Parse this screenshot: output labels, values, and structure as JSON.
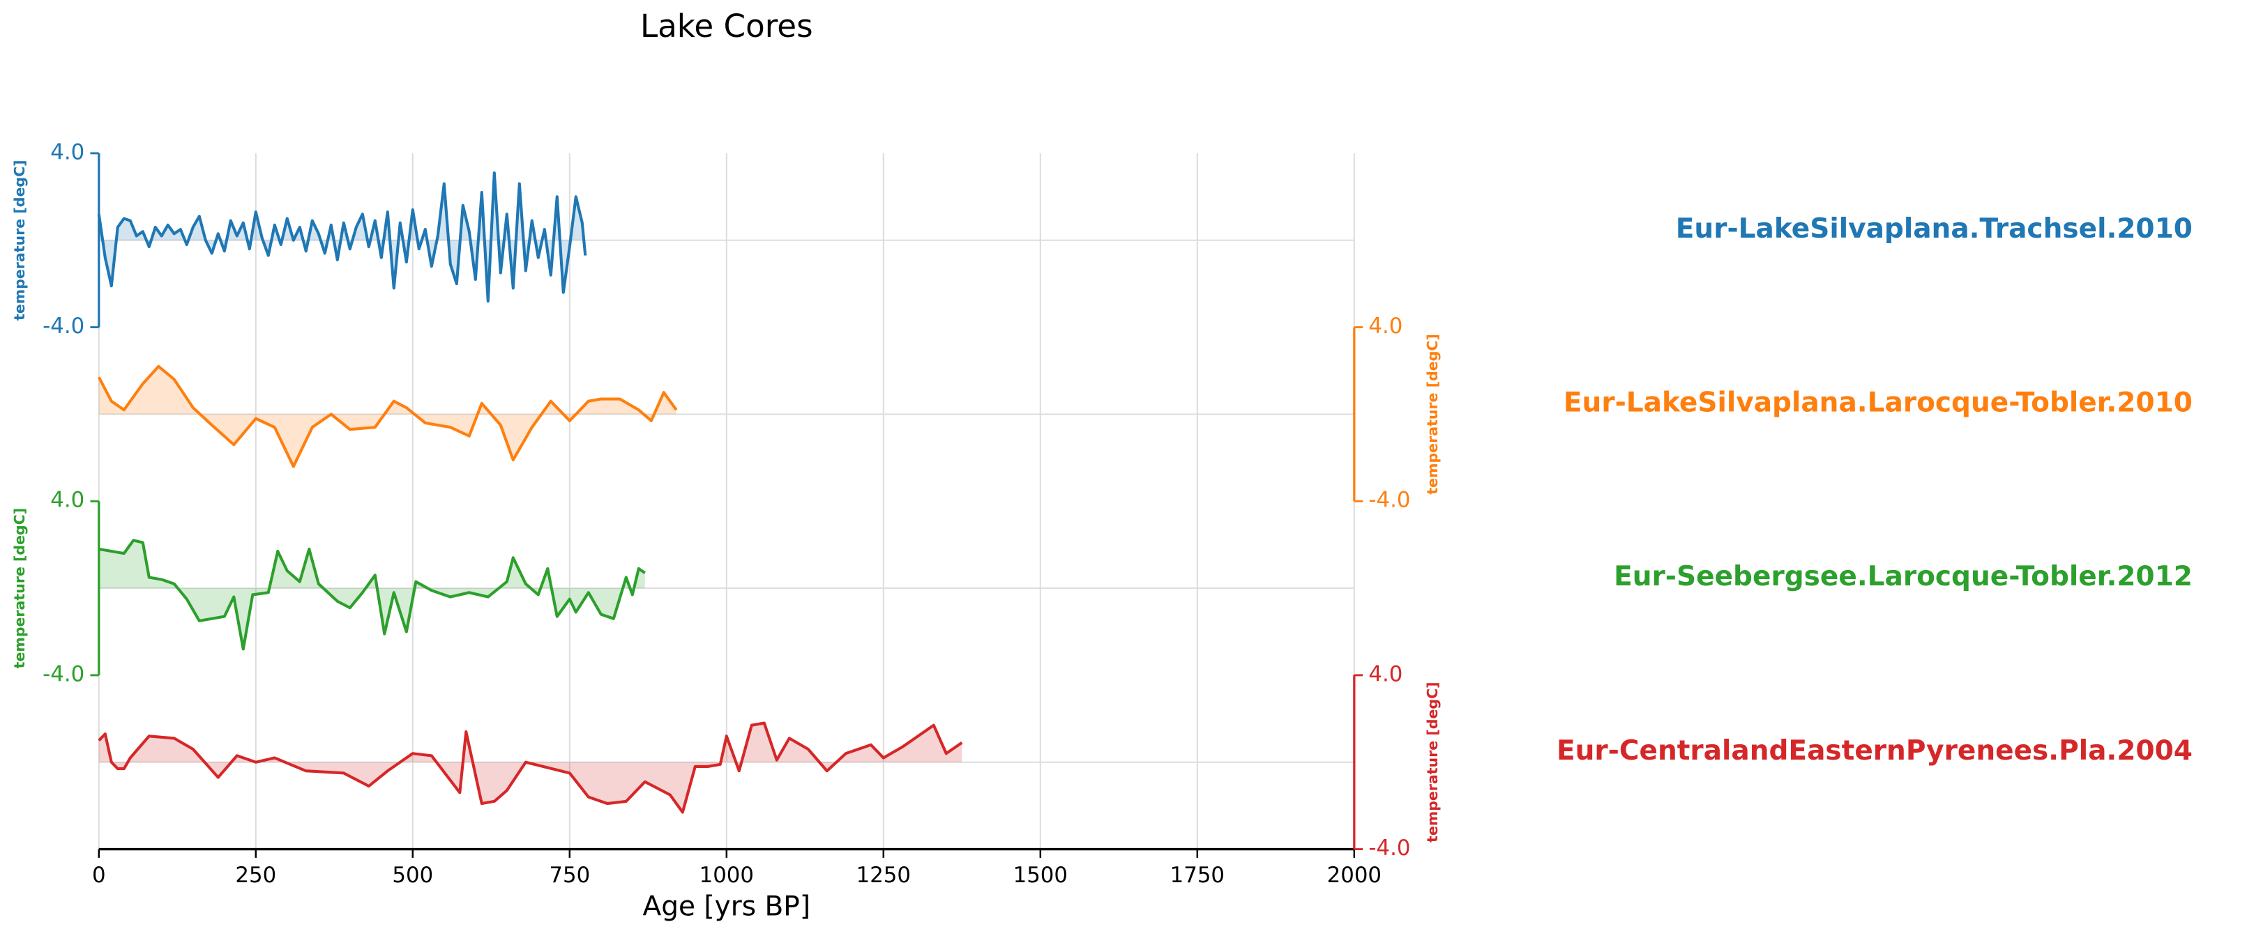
{
  "chart_data": {
    "type": "stacked-line",
    "title": "Lake Cores",
    "xlabel": "Age [yrs BP]",
    "xlim": [
      0,
      2000
    ],
    "xticks": [
      0,
      250,
      500,
      750,
      1000,
      1250,
      1500,
      1750,
      2000
    ],
    "grid": true,
    "series": [
      {
        "name": "Eur-LakeSilvaplana.Trachsel.2010",
        "color": "#1f77b4",
        "yaxis_side": "left",
        "ylabel": "temperature [degC]",
        "ylim": [
          -4,
          4
        ],
        "yticks": [
          {
            "value": -4,
            "label": "-4.0"
          },
          {
            "value": 4,
            "label": "4.0"
          }
        ],
        "x": [
          0,
          10,
          20,
          30,
          40,
          50,
          60,
          70,
          80,
          90,
          100,
          110,
          120,
          130,
          140,
          150,
          160,
          170,
          180,
          190,
          200,
          210,
          220,
          230,
          240,
          250,
          260,
          270,
          280,
          290,
          300,
          310,
          320,
          330,
          340,
          350,
          360,
          370,
          380,
          390,
          400,
          410,
          420,
          430,
          440,
          450,
          460,
          470,
          480,
          490,
          500,
          510,
          520,
          530,
          540,
          550,
          560,
          570,
          580,
          590,
          600,
          610,
          620,
          630,
          640,
          650,
          660,
          670,
          680,
          690,
          700,
          710,
          720,
          730,
          740,
          750,
          760,
          770,
          775
        ],
        "values": [
          1.2,
          -0.8,
          -2.1,
          0.6,
          1.0,
          0.9,
          0.2,
          0.4,
          -0.3,
          0.6,
          0.2,
          0.7,
          0.3,
          0.5,
          -0.2,
          0.6,
          1.1,
          0.0,
          -0.6,
          0.3,
          -0.5,
          0.9,
          0.2,
          0.8,
          -0.4,
          1.3,
          0.1,
          -0.7,
          0.7,
          -0.2,
          1.0,
          0.0,
          0.6,
          -0.5,
          0.9,
          0.3,
          -0.6,
          0.7,
          -0.9,
          0.8,
          -0.4,
          0.6,
          1.2,
          -0.3,
          0.9,
          -0.8,
          1.3,
          -2.2,
          0.8,
          -1.0,
          1.4,
          -0.4,
          0.5,
          -1.2,
          0.2,
          2.6,
          -1.1,
          -2.0,
          1.6,
          0.4,
          -1.8,
          2.2,
          -2.8,
          3.1,
          -1.5,
          1.2,
          -2.2,
          2.6,
          -1.4,
          0.9,
          -0.8,
          0.5,
          -1.6,
          2.0,
          -2.4,
          -0.3,
          2.0,
          0.8,
          -0.7
        ]
      },
      {
        "name": "Eur-LakeSilvaplana.Larocque-Tobler.2010",
        "color": "#ff7f0e",
        "yaxis_side": "right",
        "ylabel": "temperature [degC]",
        "ylim": [
          -4,
          4
        ],
        "yticks": [
          {
            "value": -4,
            "label": "-4.0"
          },
          {
            "value": 4,
            "label": "4.0"
          }
        ],
        "x": [
          0,
          20,
          40,
          70,
          95,
          120,
          150,
          180,
          215,
          250,
          280,
          310,
          340,
          370,
          400,
          440,
          470,
          490,
          520,
          560,
          590,
          610,
          640,
          660,
          690,
          720,
          750,
          780,
          800,
          830,
          860,
          880,
          900,
          920
        ],
        "values": [
          1.7,
          0.6,
          0.2,
          1.4,
          2.2,
          1.6,
          0.3,
          -0.5,
          -1.4,
          -0.2,
          -0.6,
          -2.4,
          -0.6,
          0.0,
          -0.7,
          -0.6,
          0.6,
          0.3,
          -0.4,
          -0.6,
          -1.0,
          0.5,
          -0.5,
          -2.1,
          -0.6,
          0.6,
          -0.3,
          0.6,
          0.7,
          0.7,
          0.2,
          -0.3,
          1.0,
          0.2
        ]
      },
      {
        "name": "Eur-Seebergsee.Larocque-Tobler.2012",
        "color": "#2ca02c",
        "yaxis_side": "left",
        "ylabel": "temperature [degC]",
        "ylim": [
          -4,
          4
        ],
        "yticks": [
          {
            "value": -4,
            "label": "-4.0"
          },
          {
            "value": 4,
            "label": "4.0"
          }
        ],
        "x": [
          0,
          20,
          40,
          55,
          70,
          80,
          100,
          120,
          140,
          160,
          180,
          200,
          215,
          230,
          245,
          270,
          285,
          300,
          320,
          335,
          350,
          380,
          400,
          420,
          440,
          455,
          470,
          490,
          505,
          530,
          560,
          590,
          620,
          650,
          660,
          680,
          700,
          715,
          730,
          750,
          760,
          780,
          800,
          820,
          840,
          850,
          860,
          870
        ],
        "values": [
          1.8,
          1.7,
          1.6,
          2.2,
          2.1,
          0.5,
          0.4,
          0.2,
          -0.5,
          -1.5,
          -1.4,
          -1.3,
          -0.4,
          -2.8,
          -0.3,
          -0.2,
          1.7,
          0.8,
          0.3,
          1.8,
          0.2,
          -0.6,
          -0.9,
          -0.2,
          0.6,
          -2.1,
          -0.2,
          -2.0,
          0.3,
          -0.1,
          -0.4,
          -0.2,
          -0.4,
          0.3,
          1.4,
          0.2,
          -0.3,
          0.9,
          -1.3,
          -0.5,
          -1.1,
          -0.2,
          -1.2,
          -1.4,
          0.5,
          -0.3,
          0.9,
          0.7
        ]
      },
      {
        "name": "Eur-CentralandEasternPyrenees.Pla.2004",
        "color": "#d62728",
        "yaxis_side": "right",
        "ylabel": "temperature [degC]",
        "ylim": [
          -4,
          4
        ],
        "yticks": [
          {
            "value": -4,
            "label": "-4.0"
          },
          {
            "value": 4,
            "label": "4.0"
          }
        ],
        "x": [
          0,
          10,
          20,
          30,
          40,
          50,
          80,
          120,
          150,
          190,
          220,
          250,
          280,
          330,
          390,
          430,
          460,
          500,
          530,
          575,
          585,
          610,
          630,
          650,
          680,
          750,
          780,
          810,
          840,
          870,
          910,
          930,
          950,
          970,
          990,
          1000,
          1020,
          1040,
          1060,
          1080,
          1100,
          1130,
          1160,
          1190,
          1230,
          1250,
          1280,
          1330,
          1350,
          1375
        ],
        "values": [
          1.0,
          1.3,
          0.0,
          -0.3,
          -0.3,
          0.2,
          1.2,
          1.1,
          0.6,
          -0.7,
          0.3,
          0.0,
          0.2,
          -0.4,
          -0.5,
          -1.1,
          -0.4,
          0.4,
          0.3,
          -1.4,
          1.4,
          -1.9,
          -1.8,
          -1.3,
          0.0,
          -0.5,
          -1.6,
          -1.9,
          -1.8,
          -0.9,
          -1.5,
          -2.3,
          -0.2,
          -0.2,
          -0.1,
          1.2,
          -0.4,
          1.7,
          1.8,
          0.1,
          1.1,
          0.6,
          -0.4,
          0.4,
          0.8,
          0.2,
          0.7,
          1.7,
          0.4,
          0.9
        ]
      }
    ]
  }
}
